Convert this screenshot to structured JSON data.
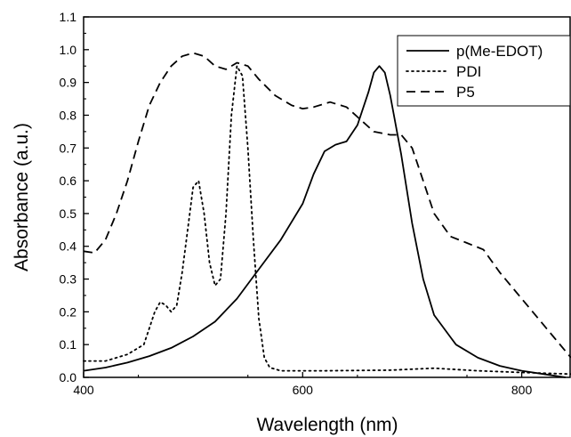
{
  "chart_data": {
    "type": "line",
    "title": "",
    "xlabel": "Wavelength (nm)",
    "ylabel": "Absorbance (a.u.)",
    "xlim": [
      400,
      845
    ],
    "ylim": [
      0,
      1.1
    ],
    "x_ticks": [
      400,
      600,
      800
    ],
    "x_tick_labels": [
      "400",
      "600",
      "800"
    ],
    "y_ticks": [
      0,
      0.1,
      0.2,
      0.3,
      0.4,
      0.5,
      0.6,
      0.7,
      0.8,
      0.9,
      1.0,
      1.1
    ],
    "y_tick_labels": [
      "0.0",
      "0.1",
      "0.2",
      "0.3",
      "0.4",
      "0.5",
      "0.6",
      "0.7",
      "0.8",
      "0.9",
      "1.0",
      "1.1"
    ],
    "grid": false,
    "legend_position": "top-right",
    "series": [
      {
        "name": "p(Me-EDOT)",
        "style": "solid",
        "color": "#000000",
        "points": [
          [
            400,
            0.02
          ],
          [
            420,
            0.03
          ],
          [
            440,
            0.045
          ],
          [
            460,
            0.065
          ],
          [
            480,
            0.09
          ],
          [
            500,
            0.125
          ],
          [
            520,
            0.17
          ],
          [
            540,
            0.24
          ],
          [
            560,
            0.33
          ],
          [
            580,
            0.42
          ],
          [
            600,
            0.53
          ],
          [
            610,
            0.62
          ],
          [
            620,
            0.69
          ],
          [
            630,
            0.71
          ],
          [
            640,
            0.72
          ],
          [
            650,
            0.77
          ],
          [
            660,
            0.87
          ],
          [
            665,
            0.93
          ],
          [
            670,
            0.95
          ],
          [
            675,
            0.93
          ],
          [
            680,
            0.86
          ],
          [
            690,
            0.68
          ],
          [
            700,
            0.47
          ],
          [
            710,
            0.3
          ],
          [
            720,
            0.19
          ],
          [
            740,
            0.1
          ],
          [
            760,
            0.06
          ],
          [
            780,
            0.035
          ],
          [
            800,
            0.02
          ],
          [
            820,
            0.01
          ],
          [
            840,
            0.0
          ]
        ]
      },
      {
        "name": "PDI",
        "style": "dotted",
        "color": "#000000",
        "points": [
          [
            400,
            0.05
          ],
          [
            420,
            0.05
          ],
          [
            440,
            0.07
          ],
          [
            455,
            0.1
          ],
          [
            460,
            0.15
          ],
          [
            465,
            0.2
          ],
          [
            470,
            0.23
          ],
          [
            475,
            0.22
          ],
          [
            480,
            0.2
          ],
          [
            485,
            0.22
          ],
          [
            490,
            0.32
          ],
          [
            495,
            0.45
          ],
          [
            500,
            0.58
          ],
          [
            505,
            0.6
          ],
          [
            510,
            0.5
          ],
          [
            515,
            0.35
          ],
          [
            520,
            0.28
          ],
          [
            525,
            0.3
          ],
          [
            530,
            0.5
          ],
          [
            535,
            0.8
          ],
          [
            540,
            0.95
          ],
          [
            545,
            0.92
          ],
          [
            550,
            0.7
          ],
          [
            555,
            0.42
          ],
          [
            560,
            0.18
          ],
          [
            565,
            0.06
          ],
          [
            570,
            0.03
          ],
          [
            580,
            0.02
          ],
          [
            620,
            0.02
          ],
          [
            680,
            0.022
          ],
          [
            720,
            0.028
          ],
          [
            760,
            0.02
          ],
          [
            800,
            0.015
          ],
          [
            845,
            0.01
          ]
        ]
      },
      {
        "name": "P5",
        "style": "dashed",
        "color": "#000000",
        "points": [
          [
            400,
            0.385
          ],
          [
            410,
            0.38
          ],
          [
            420,
            0.42
          ],
          [
            430,
            0.5
          ],
          [
            440,
            0.6
          ],
          [
            450,
            0.72
          ],
          [
            460,
            0.83
          ],
          [
            470,
            0.9
          ],
          [
            480,
            0.95
          ],
          [
            490,
            0.98
          ],
          [
            500,
            0.99
          ],
          [
            510,
            0.98
          ],
          [
            520,
            0.95
          ],
          [
            530,
            0.94
          ],
          [
            540,
            0.96
          ],
          [
            550,
            0.95
          ],
          [
            560,
            0.91
          ],
          [
            575,
            0.86
          ],
          [
            590,
            0.83
          ],
          [
            600,
            0.82
          ],
          [
            610,
            0.825
          ],
          [
            625,
            0.84
          ],
          [
            640,
            0.825
          ],
          [
            655,
            0.78
          ],
          [
            665,
            0.75
          ],
          [
            680,
            0.74
          ],
          [
            690,
            0.74
          ],
          [
            700,
            0.7
          ],
          [
            710,
            0.6
          ],
          [
            720,
            0.5
          ],
          [
            735,
            0.43
          ],
          [
            750,
            0.41
          ],
          [
            765,
            0.39
          ],
          [
            780,
            0.32
          ],
          [
            800,
            0.24
          ],
          [
            820,
            0.16
          ],
          [
            845,
            0.06
          ]
        ]
      }
    ]
  }
}
